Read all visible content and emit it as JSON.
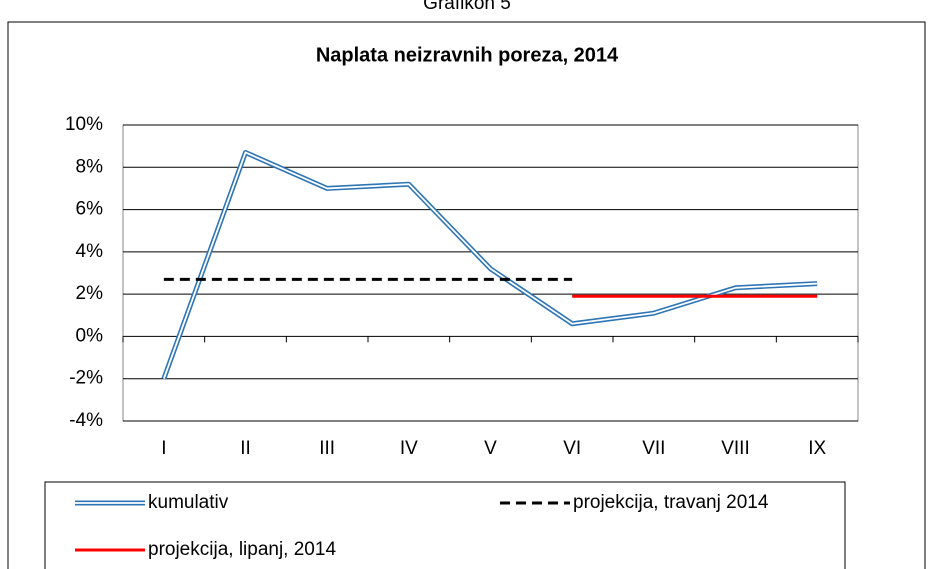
{
  "caption": "Grafikon 5",
  "chart_data": {
    "type": "line",
    "title": "Naplata neizravnih poreza,  2014",
    "categories": [
      "I",
      "II",
      "III",
      "IV",
      "V",
      "VI",
      "VII",
      "VIII",
      "IX"
    ],
    "series": [
      {
        "name": "kumulativ",
        "color": "#2e75b6",
        "line_style": "double",
        "values": [
          -2.0,
          8.7,
          7.0,
          7.2,
          3.2,
          0.6,
          1.1,
          2.3,
          2.5
        ]
      },
      {
        "name": "projekcija, travanj 2014",
        "color": "#000000",
        "line_style": "dashed",
        "values": [
          2.7,
          2.7,
          2.7,
          2.7,
          2.7,
          2.7,
          null,
          null,
          null
        ]
      },
      {
        "name": "projekcija, lipanj, 2014",
        "color": "#ff0000",
        "line_style": "solid",
        "values": [
          null,
          null,
          null,
          null,
          null,
          1.9,
          1.9,
          1.9,
          1.9
        ]
      }
    ],
    "ylim": [
      -4,
      10
    ],
    "yticks": [
      {
        "value": -4,
        "label": "-4%"
      },
      {
        "value": -2,
        "label": "-2%"
      },
      {
        "value": 0,
        "label": "0%"
      },
      {
        "value": 2,
        "label": "2%"
      },
      {
        "value": 4,
        "label": "4%"
      },
      {
        "value": 6,
        "label": "6%"
      },
      {
        "value": 8,
        "label": "8%"
      },
      {
        "value": 10,
        "label": "10%"
      }
    ],
    "grid": true,
    "legend": "bottom"
  }
}
